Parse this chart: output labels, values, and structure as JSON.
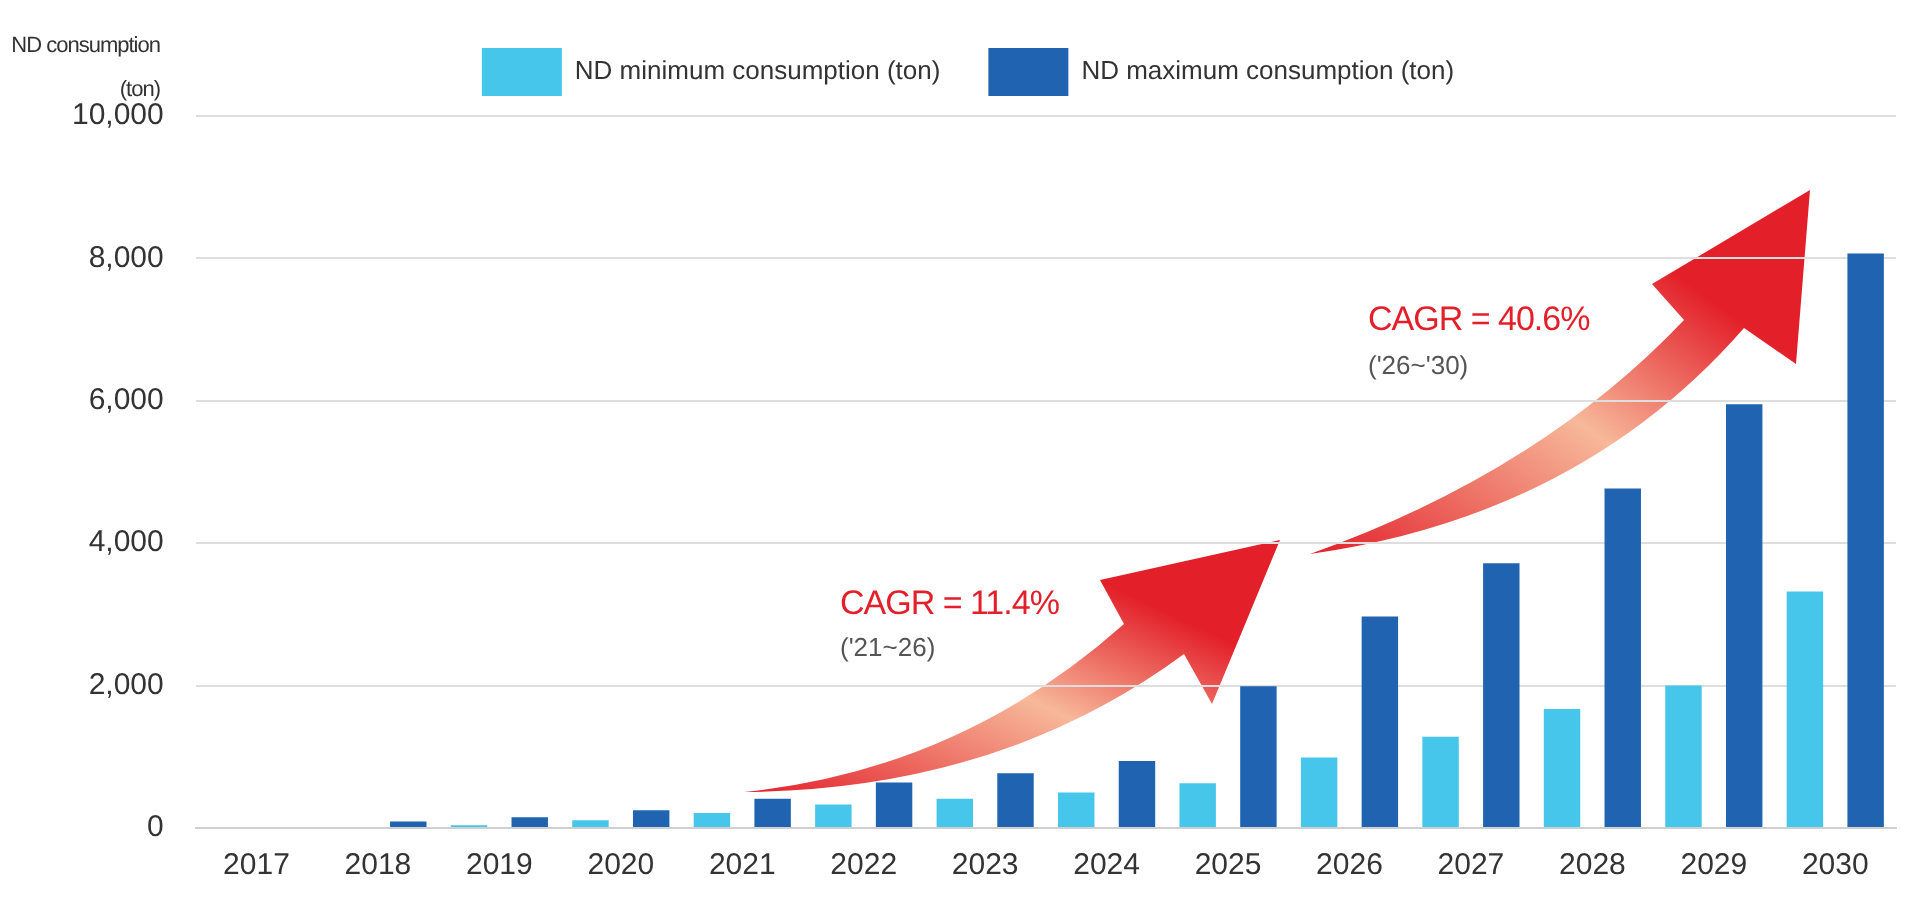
{
  "chart_data": {
    "type": "bar",
    "ylabel": "ND consumption (ton)",
    "categories": [
      "2017",
      "2018",
      "2019",
      "2020",
      "2021",
      "2022",
      "2023",
      "2024",
      "2025",
      "2026",
      "2027",
      "2028",
      "2029",
      "2030"
    ],
    "series": [
      {
        "name": "ND minimum consumption (ton)",
        "color": "#47c6ec",
        "values": [
          0,
          0,
          40,
          110,
          210,
          330,
          410,
          500,
          630,
          990,
          1280,
          1670,
          2000,
          3320
        ]
      },
      {
        "name": "ND maximum consumption (ton)",
        "color": "#2063b0",
        "values": [
          0,
          90,
          150,
          250,
          410,
          640,
          770,
          940,
          1990,
          2970,
          3720,
          4770,
          5950,
          8070
        ]
      }
    ],
    "ylim": [
      0,
      10000
    ],
    "yticks": [
      {
        "value": 0,
        "label": "0"
      },
      {
        "value": 2000,
        "label": "2,000"
      },
      {
        "value": 4000,
        "label": "4,000"
      },
      {
        "value": 6000,
        "label": "6,000"
      },
      {
        "value": 8000,
        "label": "8,000"
      },
      {
        "value": 10000,
        "label": "10,000"
      }
    ],
    "grid": "y",
    "legend": "top",
    "annotations": [
      "CAGR = 11.4%",
      "('21~26)",
      "CAGR = 40.6%",
      "('26~'30)"
    ]
  }
}
